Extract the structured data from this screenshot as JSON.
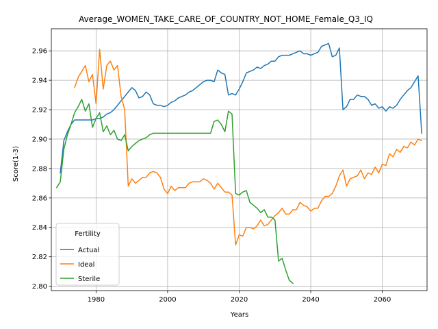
{
  "chart_data": {
    "type": "line",
    "title": "Average_WOMEN_TAKE_CARE_OF_COUNTRY_NOT_HOME_Female_Q3_IQ",
    "xlabel": "Years",
    "ylabel": "Score(1-3)",
    "xlim": [
      1967.5,
      2072.5
    ],
    "ylim": [
      2.797,
      2.975
    ],
    "xticks": [
      1980,
      2000,
      2020,
      2040,
      2060
    ],
    "yticks": [
      2.8,
      2.82,
      2.84,
      2.86,
      2.88,
      2.9,
      2.92,
      2.94,
      2.96
    ],
    "grid": true,
    "legend": {
      "title": "Fertility",
      "placement": "lower-left"
    },
    "series": [
      {
        "name": "Actual",
        "color": "#1f77b4",
        "points": [
          [
            1970,
            2.877
          ],
          [
            1971,
            2.899
          ],
          [
            1972,
            2.905
          ],
          [
            1973,
            2.91
          ],
          [
            1974,
            2.913
          ],
          [
            1975,
            2.913
          ],
          [
            1976,
            2.913
          ],
          [
            1977,
            2.913
          ],
          [
            1978,
            2.913
          ],
          [
            1979,
            2.913
          ],
          [
            1980,
            2.914
          ],
          [
            1981,
            2.914
          ],
          [
            1982,
            2.915
          ],
          [
            1983,
            2.917
          ],
          [
            1984,
            2.918
          ],
          [
            1985,
            2.92
          ],
          [
            1986,
            2.923
          ],
          [
            1987,
            2.926
          ],
          [
            1988,
            2.929
          ],
          [
            1989,
            2.932
          ],
          [
            1990,
            2.935
          ],
          [
            1991,
            2.933
          ],
          [
            1992,
            2.928
          ],
          [
            1993,
            2.929
          ],
          [
            1994,
            2.932
          ],
          [
            1995,
            2.93
          ],
          [
            1996,
            2.924
          ],
          [
            1997,
            2.923
          ],
          [
            1998,
            2.923
          ],
          [
            1999,
            2.922
          ],
          [
            2000,
            2.923
          ],
          [
            2001,
            2.925
          ],
          [
            2002,
            2.926
          ],
          [
            2003,
            2.928
          ],
          [
            2004,
            2.929
          ],
          [
            2005,
            2.93
          ],
          [
            2006,
            2.932
          ],
          [
            2007,
            2.933
          ],
          [
            2008,
            2.935
          ],
          [
            2009,
            2.937
          ],
          [
            2010,
            2.939
          ],
          [
            2011,
            2.94
          ],
          [
            2012,
            2.94
          ],
          [
            2013,
            2.939
          ],
          [
            2014,
            2.947
          ],
          [
            2015,
            2.945
          ],
          [
            2016,
            2.944
          ],
          [
            2017,
            2.93
          ],
          [
            2018,
            2.931
          ],
          [
            2019,
            2.93
          ],
          [
            2020,
            2.934
          ],
          [
            2021,
            2.939
          ],
          [
            2022,
            2.945
          ],
          [
            2023,
            2.946
          ],
          [
            2024,
            2.947
          ],
          [
            2025,
            2.949
          ],
          [
            2026,
            2.948
          ],
          [
            2027,
            2.95
          ],
          [
            2028,
            2.951
          ],
          [
            2029,
            2.953
          ],
          [
            2030,
            2.953
          ],
          [
            2031,
            2.956
          ],
          [
            2032,
            2.957
          ],
          [
            2033,
            2.957
          ],
          [
            2034,
            2.957
          ],
          [
            2035,
            2.958
          ],
          [
            2036,
            2.959
          ],
          [
            2037,
            2.96
          ],
          [
            2038,
            2.958
          ],
          [
            2039,
            2.958
          ],
          [
            2040,
            2.957
          ],
          [
            2041,
            2.958
          ],
          [
            2042,
            2.959
          ],
          [
            2043,
            2.963
          ],
          [
            2044,
            2.964
          ],
          [
            2045,
            2.965
          ],
          [
            2046,
            2.956
          ],
          [
            2047,
            2.957
          ],
          [
            2048,
            2.962
          ],
          [
            2049,
            2.92
          ],
          [
            2050,
            2.922
          ],
          [
            2051,
            2.927
          ],
          [
            2052,
            2.927
          ],
          [
            2053,
            2.93
          ],
          [
            2054,
            2.929
          ],
          [
            2055,
            2.929
          ],
          [
            2056,
            2.927
          ],
          [
            2057,
            2.923
          ],
          [
            2058,
            2.924
          ],
          [
            2059,
            2.921
          ],
          [
            2060,
            2.922
          ],
          [
            2061,
            2.919
          ],
          [
            2062,
            2.922
          ],
          [
            2063,
            2.921
          ],
          [
            2064,
            2.923
          ],
          [
            2065,
            2.927
          ],
          [
            2066,
            2.93
          ],
          [
            2067,
            2.933
          ],
          [
            2068,
            2.935
          ],
          [
            2069,
            2.939
          ],
          [
            2070,
            2.943
          ],
          [
            2071,
            2.904
          ]
        ]
      },
      {
        "name": "Ideal",
        "color": "#ff7f0e",
        "points": [
          [
            1974,
            2.935
          ],
          [
            1975,
            2.942
          ],
          [
            1976,
            2.946
          ],
          [
            1977,
            2.95
          ],
          [
            1978,
            2.939
          ],
          [
            1979,
            2.944
          ],
          [
            1980,
            2.924
          ],
          [
            1981,
            2.961
          ],
          [
            1982,
            2.934
          ],
          [
            1983,
            2.95
          ],
          [
            1984,
            2.953
          ],
          [
            1985,
            2.947
          ],
          [
            1986,
            2.95
          ],
          [
            1987,
            2.929
          ],
          [
            1988,
            2.92
          ],
          [
            1989,
            2.868
          ],
          [
            1990,
            2.873
          ],
          [
            1991,
            2.87
          ],
          [
            1992,
            2.872
          ],
          [
            1993,
            2.874
          ],
          [
            1994,
            2.874
          ],
          [
            1995,
            2.877
          ],
          [
            1996,
            2.878
          ],
          [
            1997,
            2.877
          ],
          [
            1998,
            2.874
          ],
          [
            1999,
            2.866
          ],
          [
            2000,
            2.863
          ],
          [
            2001,
            2.868
          ],
          [
            2002,
            2.865
          ],
          [
            2003,
            2.867
          ],
          [
            2004,
            2.867
          ],
          [
            2005,
            2.867
          ],
          [
            2006,
            2.87
          ],
          [
            2007,
            2.871
          ],
          [
            2008,
            2.871
          ],
          [
            2009,
            2.871
          ],
          [
            2010,
            2.873
          ],
          [
            2011,
            2.872
          ],
          [
            2012,
            2.87
          ],
          [
            2013,
            2.866
          ],
          [
            2014,
            2.87
          ],
          [
            2015,
            2.867
          ],
          [
            2016,
            2.864
          ],
          [
            2017,
            2.864
          ],
          [
            2018,
            2.862
          ],
          [
            2019,
            2.828
          ],
          [
            2020,
            2.835
          ],
          [
            2021,
            2.834
          ],
          [
            2022,
            2.84
          ],
          [
            2023,
            2.84
          ],
          [
            2024,
            2.839
          ],
          [
            2025,
            2.841
          ],
          [
            2026,
            2.845
          ],
          [
            2027,
            2.841
          ],
          [
            2028,
            2.842
          ],
          [
            2029,
            2.845
          ],
          [
            2030,
            2.848
          ],
          [
            2031,
            2.85
          ],
          [
            2032,
            2.853
          ],
          [
            2033,
            2.849
          ],
          [
            2034,
            2.849
          ],
          [
            2035,
            2.852
          ],
          [
            2036,
            2.852
          ],
          [
            2037,
            2.857
          ],
          [
            2038,
            2.855
          ],
          [
            2039,
            2.854
          ],
          [
            2040,
            2.851
          ],
          [
            2041,
            2.853
          ],
          [
            2042,
            2.853
          ],
          [
            2043,
            2.858
          ],
          [
            2044,
            2.861
          ],
          [
            2045,
            2.861
          ],
          [
            2046,
            2.863
          ],
          [
            2047,
            2.868
          ],
          [
            2048,
            2.875
          ],
          [
            2049,
            2.879
          ],
          [
            2050,
            2.868
          ],
          [
            2051,
            2.873
          ],
          [
            2052,
            2.874
          ],
          [
            2053,
            2.875
          ],
          [
            2054,
            2.879
          ],
          [
            2055,
            2.873
          ],
          [
            2056,
            2.877
          ],
          [
            2057,
            2.876
          ],
          [
            2058,
            2.881
          ],
          [
            2059,
            2.877
          ],
          [
            2060,
            2.883
          ],
          [
            2061,
            2.882
          ],
          [
            2062,
            2.89
          ],
          [
            2063,
            2.888
          ],
          [
            2064,
            2.893
          ],
          [
            2065,
            2.891
          ],
          [
            2066,
            2.895
          ],
          [
            2067,
            2.894
          ],
          [
            2068,
            2.898
          ],
          [
            2069,
            2.896
          ],
          [
            2070,
            2.9
          ],
          [
            2071,
            2.899
          ]
        ]
      },
      {
        "name": "Sterile",
        "color": "#2ca02c",
        "points": [
          [
            1969,
            2.867
          ],
          [
            1970,
            2.871
          ],
          [
            1971,
            2.893
          ],
          [
            1972,
            2.903
          ],
          [
            1973,
            2.91
          ],
          [
            1974,
            2.918
          ],
          [
            1975,
            2.922
          ],
          [
            1976,
            2.927
          ],
          [
            1977,
            2.919
          ],
          [
            1978,
            2.924
          ],
          [
            1979,
            2.908
          ],
          [
            1980,
            2.914
          ],
          [
            1981,
            2.918
          ],
          [
            1982,
            2.905
          ],
          [
            1983,
            2.909
          ],
          [
            1984,
            2.903
          ],
          [
            1985,
            2.906
          ],
          [
            1986,
            2.9
          ],
          [
            1987,
            2.899
          ],
          [
            1988,
            2.903
          ],
          [
            1989,
            2.892
          ],
          [
            1990,
            2.895
          ],
          [
            1991,
            2.897
          ],
          [
            1992,
            2.899
          ],
          [
            1993,
            2.9
          ],
          [
            1994,
            2.901
          ],
          [
            1995,
            2.903
          ],
          [
            1996,
            2.904
          ],
          [
            1997,
            2.904
          ],
          [
            1998,
            2.904
          ],
          [
            1999,
            2.904
          ],
          [
            2000,
            2.904
          ],
          [
            2001,
            2.904
          ],
          [
            2002,
            2.904
          ],
          [
            2003,
            2.904
          ],
          [
            2004,
            2.904
          ],
          [
            2005,
            2.904
          ],
          [
            2006,
            2.904
          ],
          [
            2007,
            2.904
          ],
          [
            2008,
            2.904
          ],
          [
            2009,
            2.904
          ],
          [
            2010,
            2.904
          ],
          [
            2011,
            2.904
          ],
          [
            2012,
            2.904
          ],
          [
            2013,
            2.912
          ],
          [
            2014,
            2.913
          ],
          [
            2015,
            2.91
          ],
          [
            2016,
            2.905
          ],
          [
            2017,
            2.919
          ],
          [
            2018,
            2.917
          ],
          [
            2019,
            2.863
          ],
          [
            2020,
            2.862
          ],
          [
            2021,
            2.864
          ],
          [
            2022,
            2.865
          ],
          [
            2023,
            2.857
          ],
          [
            2024,
            2.855
          ],
          [
            2025,
            2.853
          ],
          [
            2026,
            2.85
          ],
          [
            2027,
            2.852
          ],
          [
            2028,
            2.847
          ],
          [
            2029,
            2.847
          ],
          [
            2030,
            2.845
          ],
          [
            2031,
            2.817
          ],
          [
            2032,
            2.819
          ],
          [
            2033,
            2.811
          ],
          [
            2034,
            2.804
          ],
          [
            2035,
            2.802
          ]
        ]
      }
    ]
  }
}
